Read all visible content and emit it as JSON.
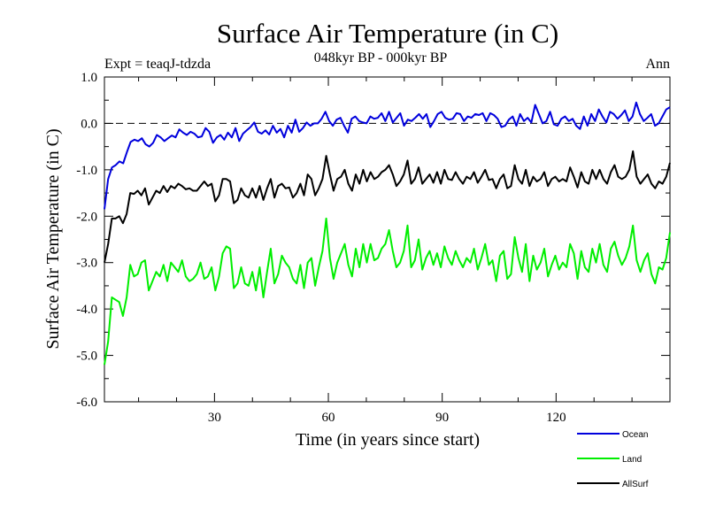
{
  "chart_data": {
    "type": "line",
    "title": "Surface Air Temperature (in C)",
    "subtitle": "048kyr BP - 000kyr BP",
    "expt_label": "Expt = teaqJ-tdzda",
    "period_label": "Ann",
    "xlabel": "Time (in years since start)",
    "ylabel": "Surface Air Temperature (in C)",
    "xlim": [
      1,
      150
    ],
    "ylim": [
      -6.0,
      1.0
    ],
    "x_ticks": [
      30,
      60,
      90,
      120
    ],
    "x_tick_labels": [
      "30",
      "60",
      "90",
      "120"
    ],
    "y_ticks": [
      1.0,
      0.0,
      -1.0,
      -2.0,
      -3.0,
      -4.0,
      -5.0,
      -6.0
    ],
    "y_tick_labels": [
      "1.0",
      "0.0",
      "-1.0",
      "-2.0",
      "-3.0",
      "-4.0",
      "-5.0",
      "-6.0"
    ],
    "reference_line": 0.0,
    "legend_position": "bottom-right",
    "series": [
      {
        "name": "Ocean",
        "color": "#0000dd",
        "values": [
          -1.85,
          -1.2,
          -0.95,
          -0.9,
          -0.82,
          -0.86,
          -0.62,
          -0.4,
          -0.35,
          -0.38,
          -0.32,
          -0.45,
          -0.5,
          -0.42,
          -0.25,
          -0.3,
          -0.38,
          -0.32,
          -0.26,
          -0.3,
          -0.13,
          -0.2,
          -0.25,
          -0.18,
          -0.22,
          -0.3,
          -0.28,
          -0.1,
          -0.18,
          -0.42,
          -0.3,
          -0.25,
          -0.35,
          -0.2,
          -0.3,
          -0.1,
          -0.38,
          -0.22,
          -0.15,
          -0.08,
          0.02,
          -0.18,
          -0.22,
          -0.15,
          -0.24,
          -0.05,
          -0.2,
          -0.12,
          -0.3,
          -0.05,
          -0.2,
          0.08,
          -0.18,
          -0.1,
          0.02,
          -0.05,
          0.0,
          0.0,
          0.1,
          0.25,
          0.05,
          -0.05,
          0.08,
          0.12,
          -0.05,
          -0.2,
          0.1,
          0.15,
          0.05,
          0.02,
          0.0,
          0.15,
          0.1,
          0.12,
          0.22,
          0.05,
          0.25,
          0.02,
          0.12,
          0.22,
          -0.05,
          0.08,
          0.05,
          0.12,
          0.2,
          0.1,
          0.2,
          -0.08,
          0.05,
          0.2,
          0.25,
          0.12,
          0.08,
          0.1,
          0.22,
          0.2,
          0.05,
          0.15,
          0.12,
          0.2,
          0.18,
          0.22,
          0.05,
          0.22,
          0.18,
          0.1,
          -0.08,
          -0.05,
          0.08,
          0.15,
          -0.05,
          0.2,
          0.05,
          0.12,
          0.02,
          0.4,
          0.2,
          0.0,
          0.05,
          0.25,
          -0.02,
          -0.05,
          0.1,
          0.15,
          0.05,
          0.1,
          -0.05,
          -0.12,
          0.15,
          -0.05,
          0.2,
          0.05,
          0.3,
          0.15,
          0.02,
          0.25,
          0.2,
          0.1,
          0.18,
          0.28,
          0.05,
          0.15,
          0.45,
          0.2,
          0.05,
          0.12,
          0.2,
          -0.05,
          0.0,
          0.15,
          0.3,
          0.35
        ]
      },
      {
        "name": "Land",
        "color": "#00ee00",
        "values": [
          -5.2,
          -4.7,
          -3.75,
          -3.8,
          -3.85,
          -4.15,
          -3.75,
          -3.05,
          -3.3,
          -3.25,
          -3.0,
          -2.95,
          -3.6,
          -3.4,
          -3.2,
          -3.3,
          -3.05,
          -3.4,
          -3.0,
          -3.1,
          -3.2,
          -2.95,
          -3.3,
          -3.4,
          -3.35,
          -3.25,
          -3.0,
          -3.35,
          -3.3,
          -3.1,
          -3.6,
          -3.3,
          -2.8,
          -2.65,
          -2.7,
          -3.55,
          -3.45,
          -3.1,
          -3.45,
          -3.5,
          -3.2,
          -3.6,
          -3.1,
          -3.75,
          -3.2,
          -2.7,
          -3.45,
          -3.25,
          -2.85,
          -3.0,
          -3.1,
          -3.35,
          -3.45,
          -3.05,
          -3.55,
          -3.0,
          -2.9,
          -3.5,
          -3.1,
          -2.75,
          -2.05,
          -2.9,
          -3.35,
          -3.0,
          -2.8,
          -2.6,
          -3.05,
          -3.3,
          -2.7,
          -3.1,
          -2.6,
          -3.0,
          -2.6,
          -2.95,
          -2.9,
          -2.7,
          -2.6,
          -2.3,
          -2.75,
          -3.1,
          -3.0,
          -2.75,
          -2.2,
          -3.1,
          -2.95,
          -2.5,
          -3.15,
          -2.9,
          -2.75,
          -3.05,
          -2.8,
          -3.1,
          -2.65,
          -2.9,
          -3.05,
          -2.75,
          -2.95,
          -3.1,
          -2.9,
          -3.0,
          -2.7,
          -3.15,
          -2.9,
          -2.6,
          -3.05,
          -2.95,
          -3.4,
          -2.85,
          -2.75,
          -3.35,
          -3.25,
          -2.45,
          -2.9,
          -3.2,
          -2.6,
          -3.4,
          -2.85,
          -3.15,
          -3.0,
          -2.7,
          -3.3,
          -3.05,
          -2.85,
          -3.15,
          -3.0,
          -3.1,
          -2.6,
          -2.8,
          -3.35,
          -2.75,
          -3.1,
          -3.2,
          -2.7,
          -3.0,
          -2.6,
          -3.05,
          -3.2,
          -2.7,
          -2.55,
          -2.85,
          -3.05,
          -2.9,
          -2.65,
          -2.2,
          -2.95,
          -3.2,
          -2.95,
          -2.8,
          -3.25,
          -3.45,
          -3.1,
          -3.15,
          -2.9,
          -2.35
        ]
      },
      {
        "name": "AllSurf",
        "color": "#000000",
        "values": [
          -3.0,
          -2.6,
          -2.05,
          -2.05,
          -2.0,
          -2.15,
          -1.95,
          -1.5,
          -1.52,
          -1.45,
          -1.55,
          -1.4,
          -1.75,
          -1.6,
          -1.45,
          -1.5,
          -1.35,
          -1.48,
          -1.35,
          -1.4,
          -1.3,
          -1.35,
          -1.42,
          -1.4,
          -1.45,
          -1.45,
          -1.35,
          -1.25,
          -1.35,
          -1.3,
          -1.68,
          -1.55,
          -1.2,
          -1.2,
          -1.25,
          -1.72,
          -1.65,
          -1.4,
          -1.55,
          -1.6,
          -1.4,
          -1.6,
          -1.35,
          -1.65,
          -1.4,
          -1.2,
          -1.6,
          -1.35,
          -1.3,
          -1.4,
          -1.38,
          -1.6,
          -1.5,
          -1.3,
          -1.55,
          -1.1,
          -1.2,
          -1.55,
          -1.4,
          -1.2,
          -0.7,
          -1.1,
          -1.45,
          -1.2,
          -1.15,
          -1.0,
          -1.3,
          -1.45,
          -1.1,
          -1.3,
          -1.0,
          -1.25,
          -1.05,
          -1.2,
          -1.15,
          -1.05,
          -1.0,
          -0.9,
          -1.1,
          -1.35,
          -1.25,
          -1.1,
          -0.8,
          -1.3,
          -1.2,
          -0.95,
          -1.3,
          -1.2,
          -1.1,
          -1.28,
          -1.05,
          -1.3,
          -1.0,
          -1.2,
          -1.22,
          -1.05,
          -1.2,
          -1.3,
          -1.15,
          -1.2,
          -1.05,
          -1.28,
          -1.15,
          -1.0,
          -1.22,
          -1.2,
          -1.4,
          -1.2,
          -1.1,
          -1.4,
          -1.35,
          -0.9,
          -1.2,
          -1.3,
          -1.0,
          -1.35,
          -1.15,
          -1.25,
          -1.2,
          -1.05,
          -1.35,
          -1.2,
          -1.15,
          -1.25,
          -1.2,
          -1.25,
          -0.95,
          -1.15,
          -1.38,
          -1.05,
          -1.25,
          -1.3,
          -1.0,
          -1.2,
          -1.0,
          -1.2,
          -1.3,
          -1.05,
          -0.9,
          -1.15,
          -1.2,
          -1.15,
          -1.0,
          -0.6,
          -1.15,
          -1.3,
          -1.2,
          -1.1,
          -1.3,
          -1.4,
          -1.25,
          -1.3,
          -1.15,
          -0.85
        ]
      }
    ]
  }
}
